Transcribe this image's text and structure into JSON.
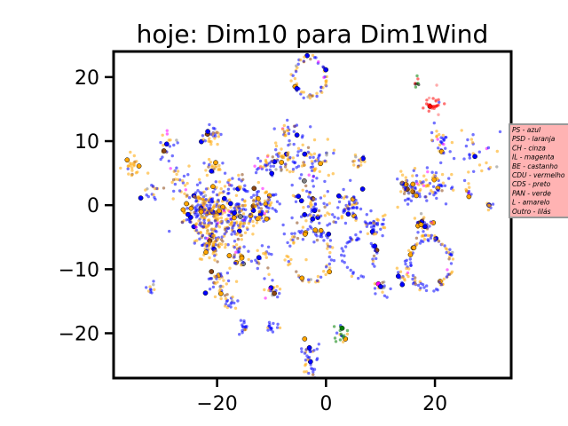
{
  "chart_data": {
    "type": "scatter",
    "title": "hoje: Dim10 para Dim1Wind",
    "xlabel": "",
    "ylabel": "",
    "xlim": [
      -39,
      34
    ],
    "ylim": [
      -27,
      24
    ],
    "xticks": [
      -20,
      0,
      20
    ],
    "yticks": [
      -20,
      -10,
      0,
      10,
      20
    ],
    "grid": false,
    "legend_position": "right",
    "legend_bg": "#ffb3b3",
    "legend": [
      {
        "label": "PS - azul",
        "color": "#0000ff"
      },
      {
        "label": "PSD - laranja",
        "color": "#ffa500"
      },
      {
        "label": "CH - cinza",
        "color": "#808080"
      },
      {
        "label": "IL - magenta",
        "color": "#ff00ff"
      },
      {
        "label": "BE - castanho",
        "color": "#8b4513"
      },
      {
        "label": "CDU - vermelho",
        "color": "#ff0000"
      },
      {
        "label": "CDS - preto",
        "color": "#000000"
      },
      {
        "label": "PAN - verde",
        "color": "#008000"
      },
      {
        "label": "L - amarelo",
        "color": "#ffff00"
      },
      {
        "label": "Outro - lilás",
        "color": "#c8a2c8"
      }
    ],
    "clusters": [
      {
        "x": -22,
        "y": -1,
        "r": 4,
        "n": 260,
        "mix": "mixed"
      },
      {
        "x": -17,
        "y": -2,
        "r": 3,
        "n": 120,
        "mix": "mixed"
      },
      {
        "x": -21,
        "y": -6,
        "r": 3,
        "n": 80,
        "mix": "orange"
      },
      {
        "x": -12,
        "y": 0,
        "r": 3,
        "n": 90,
        "mix": "mixed"
      },
      {
        "x": -3,
        "y": 20,
        "r": 3,
        "n": 60,
        "ring": true,
        "mix": "mixed"
      },
      {
        "x": -3,
        "y": -8,
        "r": 4,
        "n": 70,
        "ring": true,
        "mix": "mixed"
      },
      {
        "x": -3,
        "y": 7,
        "r": 4,
        "n": 70,
        "mix": "mixed"
      },
      {
        "x": -2,
        "y": -1,
        "r": 4,
        "n": 80,
        "mix": "blue"
      },
      {
        "x": -8,
        "y": 7,
        "r": 2,
        "n": 40,
        "mix": "mixed"
      },
      {
        "x": -7,
        "y": 12,
        "r": 2,
        "n": 25,
        "mix": "mixed"
      },
      {
        "x": 4,
        "y": 0,
        "r": 3,
        "n": 50,
        "mix": "blue"
      },
      {
        "x": 6,
        "y": -8,
        "r": 3,
        "n": 40,
        "ring": true,
        "mix": "blue"
      },
      {
        "x": 6,
        "y": 7,
        "r": 1.5,
        "n": 15,
        "mix": "mixed"
      },
      {
        "x": 9,
        "y": -3,
        "r": 2,
        "n": 40,
        "mix": "blue"
      },
      {
        "x": 15,
        "y": 2,
        "r": 2.5,
        "n": 50,
        "mix": "mixed"
      },
      {
        "x": 20,
        "y": 3,
        "r": 3,
        "n": 55,
        "mix": "mixed"
      },
      {
        "x": 19,
        "y": -9,
        "r": 4,
        "n": 90,
        "ring": true,
        "mix": "mixed"
      },
      {
        "x": 18,
        "y": -3,
        "r": 2,
        "n": 35,
        "mix": "mixed"
      },
      {
        "x": 21,
        "y": 10,
        "r": 2,
        "n": 30,
        "mix": "mixed"
      },
      {
        "x": 20,
        "y": 16,
        "r": 2,
        "n": 25,
        "mix": "red"
      },
      {
        "x": 17,
        "y": 19,
        "r": 1,
        "n": 8,
        "mix": "black"
      },
      {
        "x": 27,
        "y": 8,
        "r": 4,
        "n": 30,
        "mix": "mixed"
      },
      {
        "x": 26,
        "y": 2,
        "r": 1,
        "n": 10,
        "mix": "mixed"
      },
      {
        "x": 30,
        "y": 0,
        "r": 1,
        "n": 8,
        "mix": "mixed"
      },
      {
        "x": -29,
        "y": 9,
        "r": 2,
        "n": 20,
        "mix": "mixed"
      },
      {
        "x": -27,
        "y": 4,
        "r": 2,
        "n": 25,
        "mix": "mixed"
      },
      {
        "x": -21,
        "y": 11,
        "r": 2,
        "n": 30,
        "mix": "mixed"
      },
      {
        "x": -21,
        "y": 6,
        "r": 1.5,
        "n": 20,
        "mix": "orange"
      },
      {
        "x": -17,
        "y": 3,
        "r": 2,
        "n": 30,
        "mix": "mixed"
      },
      {
        "x": -11,
        "y": 6,
        "r": 2,
        "n": 30,
        "mix": "mixed"
      },
      {
        "x": -36,
        "y": 6,
        "r": 2,
        "n": 25,
        "mix": "orange"
      },
      {
        "x": -32,
        "y": 2,
        "r": 2,
        "n": 15,
        "mix": "mixed"
      },
      {
        "x": -20,
        "y": -12,
        "r": 2,
        "n": 35,
        "mix": "mixed"
      },
      {
        "x": -16,
        "y": -8,
        "r": 2,
        "n": 30,
        "mix": "mixed"
      },
      {
        "x": -18,
        "y": -15,
        "r": 1.5,
        "n": 20,
        "mix": "mixed"
      },
      {
        "x": -10,
        "y": -13,
        "r": 2,
        "n": 20,
        "mix": "mixed"
      },
      {
        "x": -12,
        "y": -8,
        "r": 2,
        "n": 20,
        "mix": "mixed"
      },
      {
        "x": -32,
        "y": -13,
        "r": 1,
        "n": 10,
        "mix": "mixed"
      },
      {
        "x": -15,
        "y": -19,
        "r": 1.2,
        "n": 15,
        "mix": "blue"
      },
      {
        "x": -10,
        "y": -19,
        "r": 1.2,
        "n": 15,
        "mix": "blue"
      },
      {
        "x": 3,
        "y": -20,
        "r": 1.5,
        "n": 20,
        "mix": "green"
      },
      {
        "x": -3,
        "y": -23,
        "r": 2,
        "n": 25,
        "mix": "blue"
      },
      {
        "x": -3,
        "y": -26,
        "r": 1.5,
        "n": 15,
        "mix": "mixed"
      },
      {
        "x": 10,
        "y": -13,
        "r": 1.5,
        "n": 15,
        "mix": "mixed"
      },
      {
        "x": 14,
        "y": -11,
        "r": 1.5,
        "n": 15,
        "mix": "mixed"
      }
    ]
  }
}
